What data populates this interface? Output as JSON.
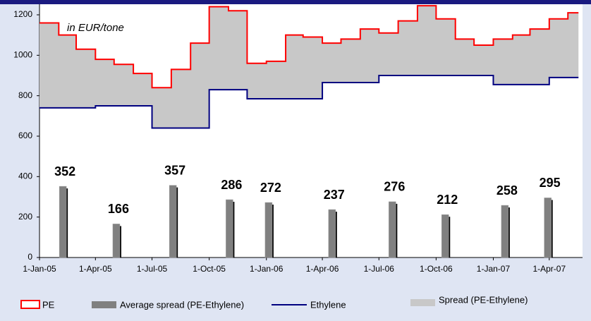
{
  "chart_data": {
    "type": "combo",
    "annotation": "in EUR/tone",
    "x": [
      "2005-01-01",
      "2005-02-01",
      "2005-03-01",
      "2005-04-01",
      "2005-05-01",
      "2005-06-01",
      "2005-07-01",
      "2005-08-01",
      "2005-09-01",
      "2005-10-01",
      "2005-11-01",
      "2005-12-01",
      "2006-01-01",
      "2006-02-01",
      "2006-03-01",
      "2006-04-01",
      "2006-05-01",
      "2006-06-01",
      "2006-07-01",
      "2006-08-01",
      "2006-09-01",
      "2006-10-01",
      "2006-11-01",
      "2006-12-01",
      "2007-01-01",
      "2007-02-01",
      "2007-03-01",
      "2007-04-01",
      "2007-05-01",
      "2007-05-18"
    ],
    "series": [
      {
        "name": "PE",
        "type": "step",
        "color": "#ff0000",
        "values": [
          1160,
          1100,
          1030,
          980,
          955,
          910,
          840,
          930,
          1060,
          1240,
          1220,
          960,
          970,
          1100,
          1090,
          1060,
          1080,
          1130,
          1110,
          1170,
          1245,
          1180,
          1080,
          1050,
          1080,
          1100,
          1130,
          1180,
          1210,
          1210
        ]
      },
      {
        "name": "Average spread (PE-Ethylene)",
        "type": "bar",
        "color": "#808080",
        "x": [
          "2005-02-11",
          "2005-05-08",
          "2005-08-07",
          "2005-11-06",
          "2006-01-08",
          "2006-04-20",
          "2006-07-26",
          "2006-10-19",
          "2007-01-23",
          "2007-04-02"
        ],
        "values": [
          352,
          166,
          357,
          286,
          272,
          237,
          276,
          212,
          258,
          295
        ]
      },
      {
        "name": "Ethylene",
        "type": "step",
        "color": "#000080",
        "values": [
          740,
          740,
          740,
          750,
          750,
          750,
          640,
          640,
          640,
          830,
          830,
          785,
          785,
          785,
          785,
          865,
          865,
          865,
          900,
          900,
          900,
          900,
          900,
          900,
          855,
          855,
          855,
          890,
          890,
          890
        ]
      },
      {
        "name": "Spread (PE-Ethylene)",
        "type": "area",
        "color": "#c8c8c8",
        "stacked_on": "Ethylene",
        "values": [
          420,
          360,
          290,
          230,
          205,
          160,
          200,
          290,
          420,
          410,
          390,
          175,
          185,
          315,
          305,
          195,
          215,
          265,
          210,
          270,
          345,
          280,
          180,
          150,
          225,
          245,
          275,
          290,
          320,
          320
        ]
      }
    ],
    "xlim": [
      "2005-01-01",
      "2007-05-20"
    ],
    "xticks": [
      {
        "value": "2005-01-01",
        "label": "1-Jan-05"
      },
      {
        "value": "2005-04-01",
        "label": "1-Apr-05"
      },
      {
        "value": "2005-07-01",
        "label": "1-Jul-05"
      },
      {
        "value": "2005-10-01",
        "label": "1-Oct-05"
      },
      {
        "value": "2006-01-01",
        "label": "1-Jan-06"
      },
      {
        "value": "2006-04-01",
        "label": "1-Apr-06"
      },
      {
        "value": "2006-07-01",
        "label": "1-Jul-06"
      },
      {
        "value": "2006-10-01",
        "label": "1-Oct-06"
      },
      {
        "value": "2007-01-01",
        "label": "1-Jan-07"
      },
      {
        "value": "2007-04-01",
        "label": "1-Apr-07"
      }
    ],
    "ylim": [
      0,
      1200
    ],
    "yticks": [
      0,
      200,
      400,
      600,
      800,
      1000,
      1200
    ],
    "grid": false,
    "legend": "bottom"
  }
}
